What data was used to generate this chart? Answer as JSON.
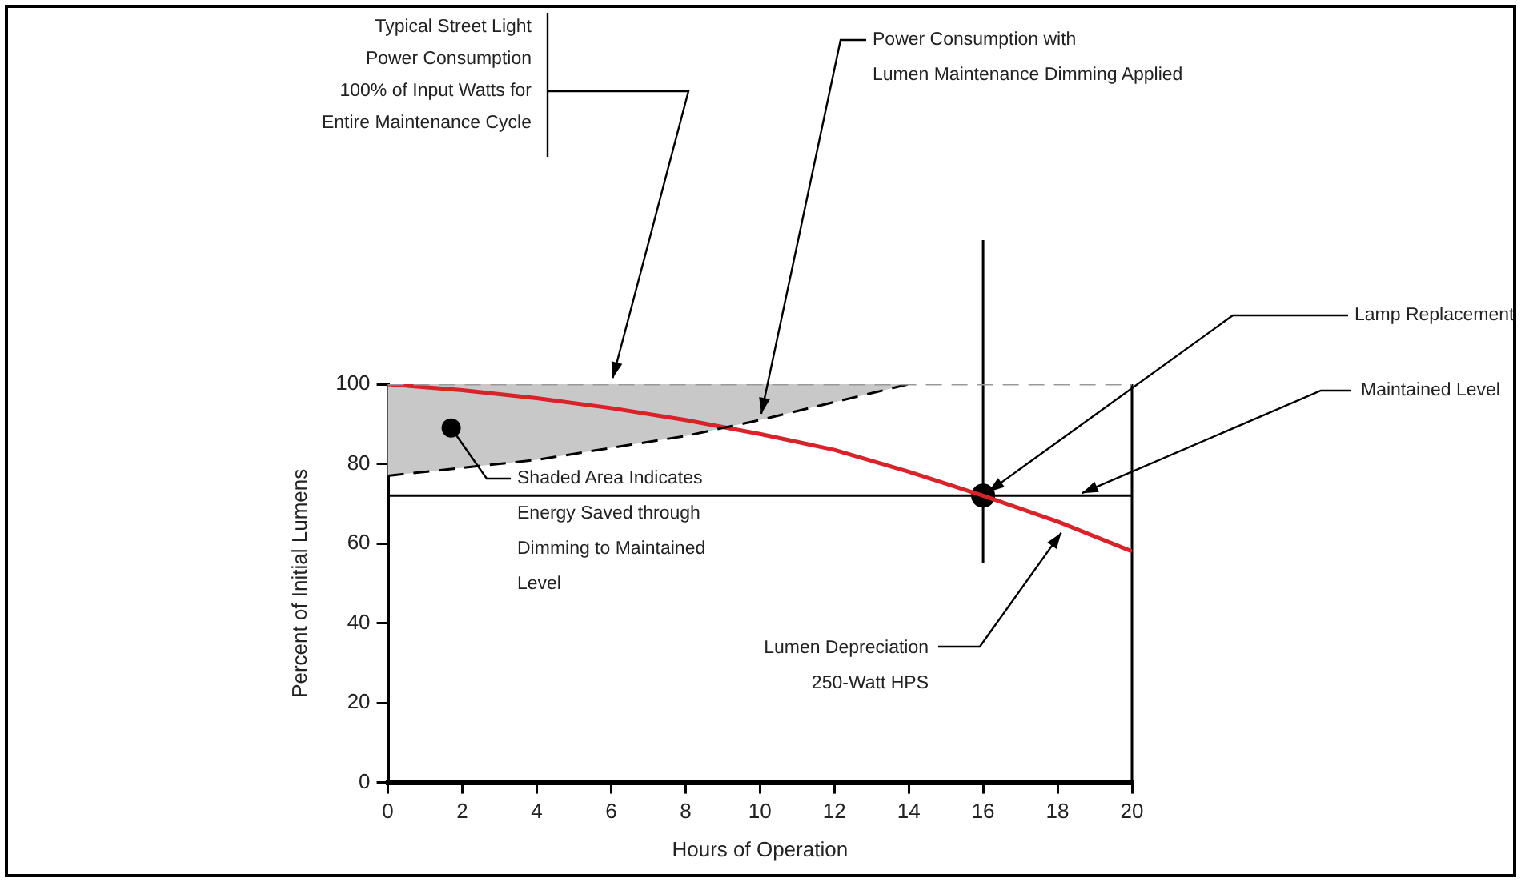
{
  "chart_data": {
    "type": "line",
    "xlabel": "Hours of Operation",
    "ylabel": "Percent of Initial Lumens",
    "xlim": [
      0,
      20
    ],
    "xticks": [
      0,
      2,
      4,
      6,
      8,
      10,
      12,
      14,
      16,
      18,
      20
    ],
    "ylim": [
      0,
      100
    ],
    "yticks": [
      0,
      20,
      40,
      60,
      80,
      100
    ],
    "grid": false,
    "legend": false,
    "series": [
      {
        "color": "#999999",
        "line_style": "dashed",
        "marker": "none",
        "x": [
          0,
          20
        ],
        "values": [
          100,
          100
        ]
      },
      {
        "color": "#000000",
        "line_style": "dashed",
        "marker": "none",
        "x": [
          0,
          2,
          4,
          6,
          8,
          10,
          12,
          14
        ],
        "values": [
          77,
          79,
          81,
          84,
          87,
          91,
          95.5,
          100
        ],
        "lower": [
          77,
          79,
          81,
          84,
          87,
          91,
          95.5,
          100
        ],
        "upper": [
          100,
          100,
          100,
          100,
          100,
          100,
          100,
          100
        ]
      },
      {
        "color": "#d9232a",
        "line_style": "solid",
        "marker": "none",
        "x": [
          0,
          2,
          4,
          6,
          8,
          10,
          12,
          14,
          16,
          18,
          20
        ],
        "values": [
          100,
          98.5,
          96.5,
          94,
          91,
          87.5,
          83.5,
          78,
          72,
          65.5,
          58
        ]
      },
      {
        "type": "scatter",
        "color": "#000000",
        "marker": "circle",
        "x": [
          16
        ],
        "values": [
          72
        ]
      }
    ],
    "ref_lines": [
      {
        "axis": "y",
        "value": 72,
        "color": "#000000"
      },
      {
        "axis": "x",
        "value": 16,
        "color": "#000000"
      }
    ],
    "annotations": [
      {
        "text": "Typical Street Light\nPower Consumption\n100% of Input Watts for\nEntire Maintenance Cycle",
        "x": 6,
        "y": 100
      },
      {
        "text": "Power Consumption with\nLumen Maintenance Dimming Applied",
        "x": 10,
        "y": 91
      },
      {
        "text": "Lamp Replacement",
        "x": 16,
        "y": 72
      },
      {
        "text": "Maintained Level",
        "x": 18.5,
        "y": 72
      },
      {
        "text": "Shaded Area Indicates\nEnergy Saved through\nDimming to Maintained\nLevel",
        "x": 1.7,
        "y": 89
      },
      {
        "text": "Lumen Depreciation\n250-Watt HPS",
        "x": 18.2,
        "y": 64
      }
    ]
  }
}
